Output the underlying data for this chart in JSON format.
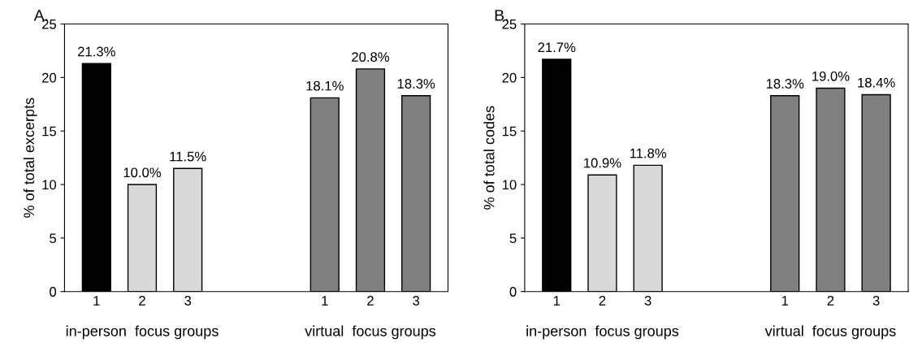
{
  "chart_data": [
    {
      "type": "bar",
      "title": "A.",
      "ylabel": "% of total excerpts",
      "categories": [
        "1",
        "2",
        "3",
        null,
        null,
        "1",
        "2",
        "3"
      ],
      "values": [
        21.3,
        10.0,
        11.5,
        null,
        null,
        18.1,
        20.8,
        18.3
      ],
      "value_labels": [
        "21.3%",
        "10.0%",
        "11.5%",
        null,
        null,
        "18.1%",
        "20.8%",
        "18.3%"
      ],
      "colors": [
        "#000000",
        "#d9d9d9",
        "#d9d9d9",
        null,
        null,
        "#808080",
        "#808080",
        "#808080"
      ],
      "ylim": [
        0,
        25
      ],
      "yticks": [
        0,
        5,
        10,
        15,
        20,
        25
      ],
      "grid": false,
      "legend": false,
      "annotations": [
        "in-person  focus groups",
        "virtual  focus groups"
      ]
    },
    {
      "type": "bar",
      "title": "B.",
      "ylabel": "% of total codes",
      "categories": [
        "1",
        "2",
        "3",
        null,
        null,
        "1",
        "2",
        "3"
      ],
      "values": [
        21.7,
        10.9,
        11.8,
        null,
        null,
        18.3,
        19.0,
        18.4
      ],
      "value_labels": [
        "21.7%",
        "10.9%",
        "11.8%",
        null,
        null,
        "18.3%",
        "19.0%",
        "18.4%"
      ],
      "colors": [
        "#000000",
        "#d9d9d9",
        "#d9d9d9",
        null,
        null,
        "#808080",
        "#808080",
        "#808080"
      ],
      "ylim": [
        0,
        25
      ],
      "yticks": [
        0,
        5,
        10,
        15,
        20,
        25
      ],
      "grid": false,
      "legend": false,
      "annotations": [
        "in-person  focus groups",
        "virtual  focus groups"
      ]
    }
  ]
}
